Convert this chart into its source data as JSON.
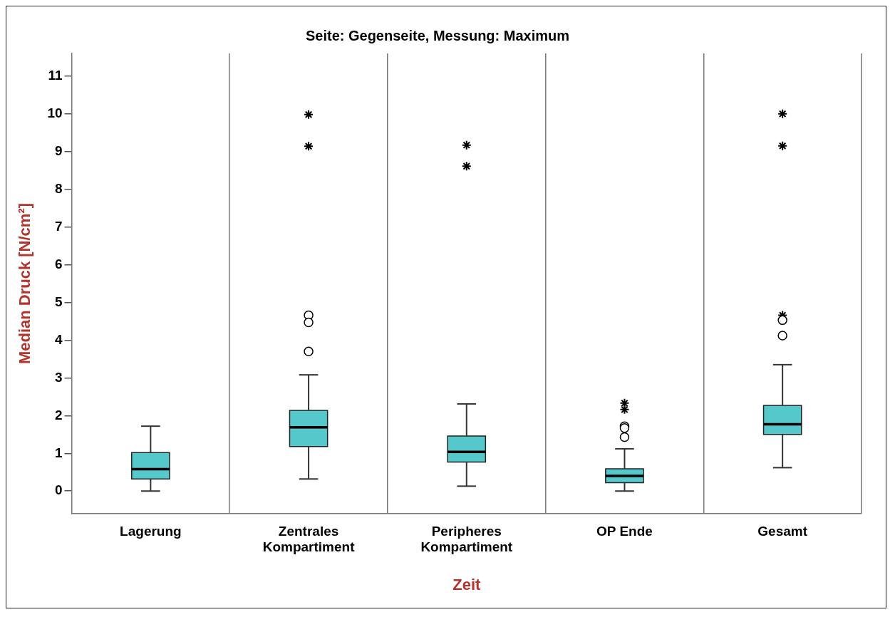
{
  "chart_data": {
    "type": "box",
    "title": "Seite: Gegenseite, Messung: Maximum",
    "xlabel": "Zeit",
    "ylabel": "Median Druck [N/cm²]",
    "categories": [
      "Lagerung",
      "Zentrales Kompartiment",
      "Peripheres Kompartiment",
      "OP Ende",
      "Gesamt"
    ],
    "series": [
      {
        "type": "box",
        "color": "#55c8cc",
        "boxes": [
          {
            "low": 0,
            "q1": 0.32,
            "median": 0.58,
            "q3": 1.02,
            "high": 1.72
          },
          {
            "low": 0.32,
            "q1": 1.18,
            "median": 1.69,
            "q3": 2.14,
            "high": 3.08,
            "outliers": [
              4.66,
              4.47,
              3.7
            ]
          },
          {
            "low": 0.13,
            "q1": 0.77,
            "median": 1.04,
            "q3": 1.46,
            "high": 2.31
          },
          {
            "low": 0,
            "q1": 0.22,
            "median": 0.4,
            "q3": 0.59,
            "high": 1.12,
            "outliers": [
              1.72,
              1.67,
              1.43
            ]
          },
          {
            "low": 0.62,
            "q1": 1.5,
            "median": 1.77,
            "q3": 2.27,
            "high": 3.35,
            "outliers": [
              4.53,
              4.12
            ]
          }
        ]
      },
      {
        "type": "scatter",
        "color": "#000000",
        "marker": "cross",
        "x": [
          "Zentrales Kompartiment",
          "Zentrales Kompartiment",
          "Peripheres Kompartiment",
          "Peripheres Kompartiment",
          "OP Ende",
          "OP Ende",
          "Gesamt",
          "Gesamt",
          "Gesamt"
        ],
        "values": [
          9.98,
          9.14,
          9.17,
          8.61,
          2.33,
          2.16,
          10,
          9.15,
          4.66
        ]
      }
    ],
    "ylim": [
      -0.6,
      11.6
    ],
    "yticks": [
      0,
      1,
      2,
      3,
      4,
      5,
      6,
      7,
      8,
      9,
      10,
      11
    ],
    "grid": "x",
    "legend": false
  }
}
